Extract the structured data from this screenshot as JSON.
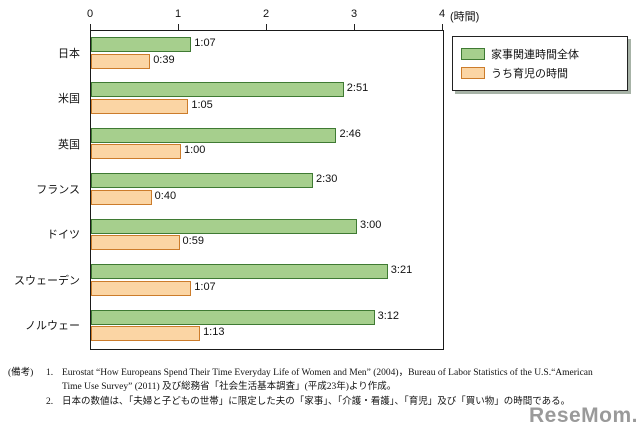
{
  "chart_data": {
    "type": "bar",
    "orientation": "horizontal",
    "categories": [
      "日本",
      "米国",
      "英国",
      "フランス",
      "ドイツ",
      "スウェーデン",
      "ノルウェー"
    ],
    "series": [
      {
        "name": "家事関連時間全体",
        "fill": "#a6cf8d",
        "border": "#3f7a33",
        "values_minutes": [
          67,
          171,
          166,
          150,
          180,
          201,
          192
        ],
        "labels": [
          "1:07",
          "2:51",
          "2:46",
          "2:30",
          "3:00",
          "3:21",
          "3:12"
        ]
      },
      {
        "name": "うち育児の時間",
        "fill": "#fbd5a4",
        "border": "#cc7c2b",
        "values_minutes": [
          39,
          65,
          60,
          40,
          59,
          67,
          73
        ],
        "labels": [
          "0:39",
          "1:05",
          "1:00",
          "0:40",
          "0:59",
          "1:07",
          "1:13"
        ]
      }
    ],
    "x_ticks": [
      "0",
      "1",
      "2",
      "3",
      "4"
    ],
    "x_unit": "(時間)",
    "xlim": [
      0,
      4
    ],
    "grid": false,
    "legend_position": "top-right"
  },
  "notes": {
    "prefix": "(備考)",
    "items": [
      {
        "num": "1.",
        "text": "Eurostat “How Europeans Spend Their Time Everyday Life of Women and Men” (2004)，Bureau of Labor Statistics of the U.S.“American Time Use Survey” (2011) 及び総務省「社会生活基本調査」(平成23年)より作成。"
      },
      {
        "num": "2.",
        "text": "日本の数値は、「夫婦と子どもの世帯」に限定した夫の「家事」、「介護・看護」、「育児」及び「買い物」の時間である。"
      }
    ]
  },
  "watermark": "ReseMom."
}
